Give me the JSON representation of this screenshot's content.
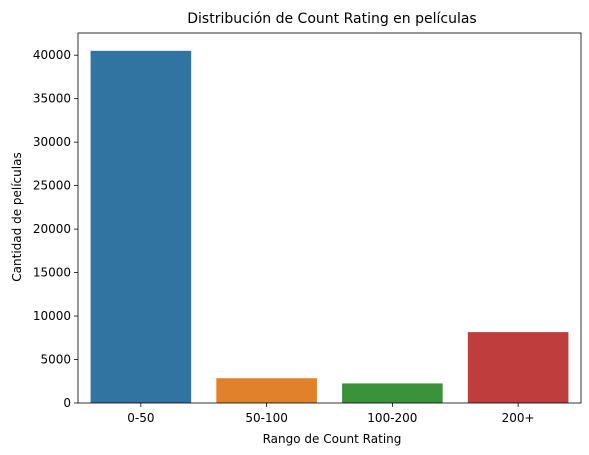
{
  "chart_data": {
    "type": "bar",
    "title": "Distribución de Count Rating en películas",
    "xlabel": "Rango de Count Rating",
    "ylabel": "Cantidad de películas",
    "categories": [
      "0-50",
      "50-100",
      "100-200",
      "200+"
    ],
    "values": [
      40500,
      2850,
      2250,
      8150
    ],
    "colors": [
      "#3274a1",
      "#e1812c",
      "#3a923a",
      "#c03d3e"
    ],
    "ylim": [
      0,
      42550
    ],
    "yticks": [
      0,
      5000,
      10000,
      15000,
      20000,
      25000,
      30000,
      35000,
      40000
    ],
    "grid": false,
    "legend": "none"
  }
}
